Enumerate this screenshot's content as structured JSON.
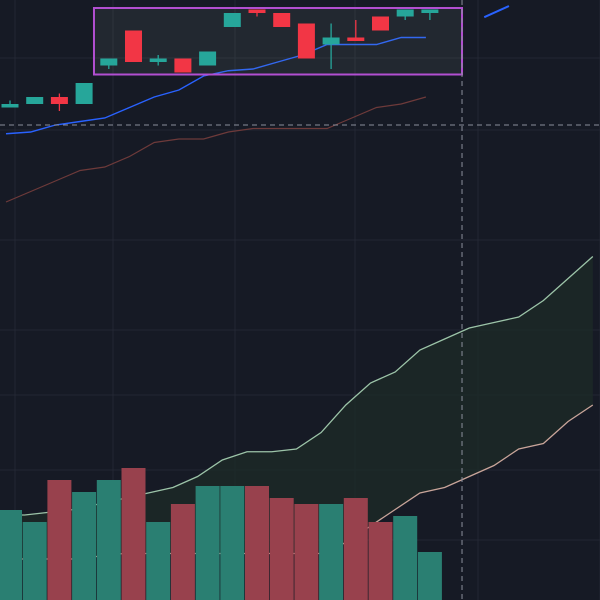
{
  "chart_data": {
    "type": "candlestick",
    "title": "",
    "xlabel": "",
    "ylabel": "",
    "x_index": [
      0,
      1,
      2,
      3,
      4,
      5,
      6,
      7,
      8,
      9,
      10,
      11,
      12,
      13,
      14,
      15,
      16,
      17
    ],
    "candles": [
      {
        "o": 89,
        "h": 91,
        "l": 89,
        "c": 90
      },
      {
        "o": 90,
        "h": 92,
        "l": 90,
        "c": 92
      },
      {
        "o": 92,
        "h": 93,
        "l": 88,
        "c": 90
      },
      {
        "o": 90,
        "h": 96,
        "l": 90,
        "c": 96
      },
      {
        "o": 101,
        "h": 103,
        "l": 100,
        "c": 103
      },
      {
        "o": 111,
        "h": 111,
        "l": 102,
        "c": 102
      },
      {
        "o": 102,
        "h": 104,
        "l": 101,
        "c": 103
      },
      {
        "o": 103,
        "h": 103,
        "l": 99,
        "c": 99
      },
      {
        "o": 101,
        "h": 105,
        "l": 101,
        "c": 105
      },
      {
        "o": 112,
        "h": 116,
        "l": 112,
        "c": 116
      },
      {
        "o": 117,
        "h": 117,
        "l": 115,
        "c": 116
      },
      {
        "o": 116,
        "h": 116,
        "l": 112,
        "c": 112
      },
      {
        "o": 113,
        "h": 113,
        "l": 103,
        "c": 103
      },
      {
        "o": 107,
        "h": 113,
        "l": 100,
        "c": 109
      },
      {
        "o": 109,
        "h": 114,
        "l": 108,
        "c": 108
      },
      {
        "o": 115,
        "h": 115,
        "l": 111,
        "c": 111
      },
      {
        "o": 115,
        "h": 117,
        "l": 114,
        "c": 117
      },
      {
        "o": 116,
        "h": 117,
        "l": 114,
        "c": 117
      }
    ],
    "ema_fast": {
      "x": [
        0,
        1,
        2,
        3,
        4,
        5,
        6,
        7,
        8,
        9,
        10,
        11,
        12,
        13,
        14,
        15,
        16,
        17
      ],
      "values": [
        81.5,
        82,
        84,
        85,
        86,
        89,
        92,
        94,
        98,
        99.5,
        100,
        102,
        104,
        107,
        107,
        107,
        109,
        109
      ]
    },
    "ema_fast_extension": {
      "x": [
        19.2,
        20.2
      ],
      "values": [
        114.8,
        118
      ]
    },
    "ema_slow": {
      "x": [
        0,
        1,
        2,
        3,
        4,
        5,
        6,
        7,
        8,
        9,
        10,
        11,
        12,
        13,
        14,
        15,
        16,
        17
      ],
      "values": [
        62,
        65,
        68,
        71,
        72,
        75,
        79,
        80,
        80,
        82,
        83,
        83,
        83,
        83,
        86,
        89,
        90,
        92
      ]
    },
    "band_upper": {
      "x": [
        0,
        1,
        2,
        3,
        4,
        5,
        6,
        7,
        8,
        9,
        10,
        11,
        12,
        13,
        14,
        15,
        16,
        17,
        18,
        19,
        20,
        21,
        22,
        23,
        24
      ],
      "values": [
        16,
        16,
        16.5,
        17,
        18,
        19,
        20,
        21,
        23,
        26,
        27.5,
        27.5,
        28,
        31,
        36,
        40,
        42,
        46,
        48,
        50,
        51,
        52,
        55,
        59,
        63
      ]
    },
    "band_lower": {
      "x": [
        0,
        1,
        2,
        3,
        4,
        5,
        6,
        7,
        8,
        9,
        10,
        11,
        12,
        13,
        14,
        15,
        16,
        17,
        18,
        19,
        20,
        21,
        22,
        23,
        24
      ],
      "values": [
        8,
        8,
        8,
        8,
        8.5,
        9,
        9,
        9,
        9,
        9,
        9,
        9,
        9,
        9,
        11,
        14,
        17,
        20,
        21,
        23,
        25,
        28,
        29,
        33,
        36
      ]
    },
    "volume": {
      "x": [
        0,
        1,
        2,
        3,
        4,
        5,
        6,
        7,
        8,
        9,
        10,
        11,
        12,
        13,
        14,
        15,
        16,
        17
      ],
      "values": [
        15,
        13,
        20,
        18,
        20,
        22,
        13,
        16,
        19,
        19,
        19,
        17,
        16,
        16,
        17,
        13,
        14,
        8
      ]
    },
    "crosshair": {
      "x": 18.3,
      "price": 84
    },
    "selection": {
      "x_from": 3.4,
      "x_to": 18.3,
      "price_from": 99,
      "price_to": 118
    },
    "colors": {
      "background": "#161a25",
      "grid": "#232734",
      "up": "#26a69a",
      "down": "#f23645",
      "volume_up": "#2a7f72",
      "volume_down": "#98414d",
      "ema_fast": "#2962ff",
      "ema_slow": "#6e3a3a",
      "band_upper": "#9cc4a8",
      "band_lower": "#c9a59a",
      "band_fill": "#1d2b27",
      "selection_border": "#b24fd1",
      "crosshair": "#8b8f9c"
    }
  }
}
